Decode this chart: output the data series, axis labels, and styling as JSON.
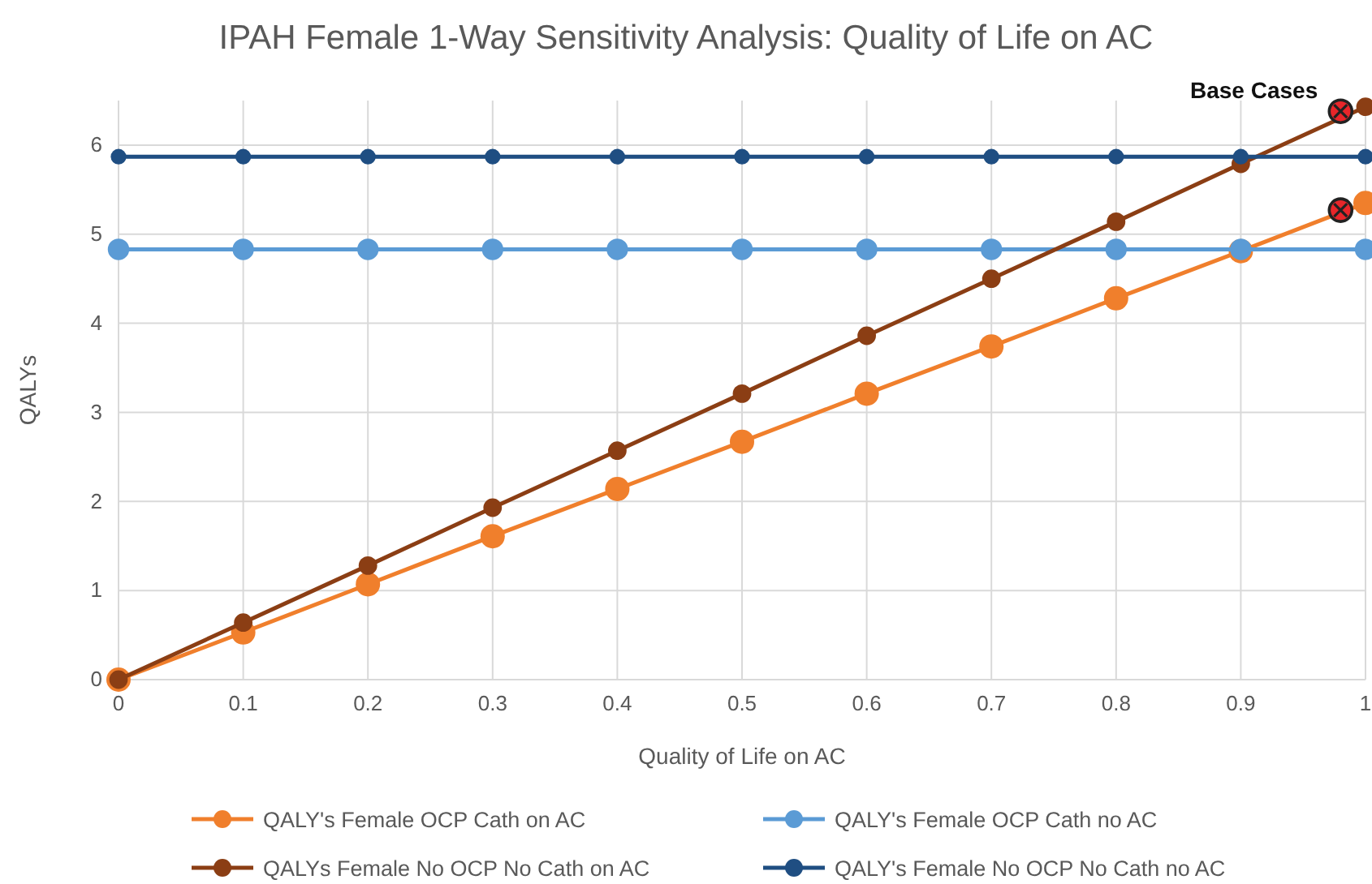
{
  "chart_data": {
    "type": "line",
    "title": "IPAH Female 1-Way Sensitivity Analysis: Quality of Life on AC",
    "xlabel": "Quality of Life on AC",
    "ylabel": "QALYs",
    "x": [
      0,
      0.1,
      0.2,
      0.3,
      0.4,
      0.5,
      0.6,
      0.7,
      0.8,
      0.9,
      1
    ],
    "series": [
      {
        "name": "QALY's Female OCP Cath on AC",
        "color": "#f07f2c",
        "values": [
          0,
          0.53,
          1.07,
          1.61,
          2.14,
          2.67,
          3.21,
          3.74,
          4.28,
          4.81,
          5.35
        ]
      },
      {
        "name": "QALY's Female OCP Cath no AC",
        "color": "#5b9bd5",
        "values": [
          4.83,
          4.83,
          4.83,
          4.83,
          4.83,
          4.83,
          4.83,
          4.83,
          4.83,
          4.83,
          4.83
        ]
      },
      {
        "name": "QALYs Female No OCP No Cath on AC",
        "color": "#8b3e14",
        "values": [
          0,
          0.64,
          1.28,
          1.93,
          2.57,
          3.21,
          3.86,
          4.5,
          5.14,
          5.79,
          6.43
        ]
      },
      {
        "name": "QALY's Female No OCP No Cath no AC",
        "color": "#1f4e82",
        "values": [
          5.87,
          5.87,
          5.87,
          5.87,
          5.87,
          5.87,
          5.87,
          5.87,
          5.87,
          5.87,
          5.87
        ]
      },
      {
        "type": "scatter",
        "color": "#e8262a",
        "marker": "circle",
        "x": [
          0.98,
          0.98
        ],
        "values": [
          6.38,
          5.27
        ]
      }
    ],
    "xlim": [
      0,
      1
    ],
    "ylim": [
      0,
      6.5
    ],
    "xticks": [
      0,
      0.1,
      0.2,
      0.3,
      0.4,
      0.5,
      0.6,
      0.7,
      0.8,
      0.9,
      1
    ],
    "yticks": [
      0,
      1,
      2,
      3,
      4,
      5,
      6
    ],
    "grid": true,
    "legend": "bottom",
    "marker": "circle",
    "line_style": "solid",
    "annotations": [
      {
        "text": "Base Cases",
        "x": 0.98,
        "y": 6.38
      }
    ]
  }
}
